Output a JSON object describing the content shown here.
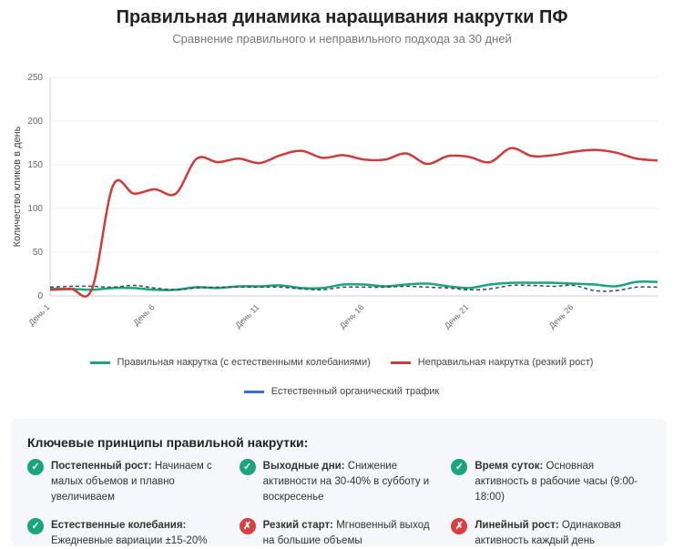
{
  "chart_data": {
    "type": "line",
    "title": "Правильная динамика наращивания накрутки ПФ",
    "subtitle": "Сравнение правильного и неправильного подхода за 30 дней",
    "y_label": "Количество кликов в день",
    "categories": [
      "День 1",
      null,
      null,
      null,
      null,
      "День 6",
      null,
      null,
      null,
      null,
      "День 11",
      null,
      null,
      null,
      null,
      "День 16",
      null,
      null,
      null,
      null,
      "День 21",
      null,
      null,
      null,
      null,
      "День 26",
      null,
      null,
      null,
      null
    ],
    "ylim": [
      0,
      250
    ],
    "yticks": [
      0,
      50,
      100,
      150,
      200,
      250
    ],
    "grid": true,
    "series": [
      {
        "name": "Правильная накрутка (с естественными колебаниями)",
        "color": "#1aa57a",
        "values": [
          8,
          8,
          7,
          9,
          9,
          7,
          7,
          10,
          9,
          11,
          11,
          12,
          9,
          9,
          13,
          13,
          11,
          13,
          14,
          11,
          9,
          13,
          15,
          15,
          15,
          14,
          13,
          11,
          16,
          16
        ]
      },
      {
        "name": "Неправильная накрутка (резкий рост)",
        "color": "#d03a3a",
        "values": [
          7,
          8,
          8,
          126,
          117,
          122,
          117,
          157,
          153,
          157,
          152,
          161,
          166,
          158,
          161,
          156,
          156,
          163,
          151,
          160,
          159,
          153,
          169,
          160,
          161,
          165,
          167,
          164,
          157,
          155
        ]
      },
      {
        "name": "Естественный органический трафик",
        "color": "#3a6fc4",
        "dashed": true,
        "values": [
          10,
          11,
          11,
          10,
          12,
          9,
          7,
          9,
          10,
          10,
          10,
          10,
          8,
          7,
          10,
          10,
          10,
          11,
          10,
          9,
          7,
          8,
          12,
          12,
          11,
          12,
          6,
          6,
          10,
          10
        ]
      }
    ]
  },
  "principles": {
    "title": "Ключевые принципы правильной накрутки:",
    "items": [
      {
        "icon": "✓",
        "label": "Постепенный рост:",
        "text": "Начинаем с малых объемов и плавно увеличиваем"
      },
      {
        "icon": "✓",
        "label": "Выходные дни:",
        "text": "Снижение активности на 30-40% в субботу и воскресенье"
      },
      {
        "icon": "✓",
        "label": "Время суток:",
        "text": "Основная активность в рабочие часы (9:00-18:00)"
      },
      {
        "icon": "✓",
        "label": "Естественные колебания:",
        "text": "Ежедневные вариации ±15-20%"
      },
      {
        "icon": "✗",
        "label": "Резкий старт:",
        "text": "Мгновенный выход на большие объемы"
      },
      {
        "icon": "✗",
        "label": "Линейный рост:",
        "text": "Одинаковая активность каждый день"
      }
    ]
  }
}
